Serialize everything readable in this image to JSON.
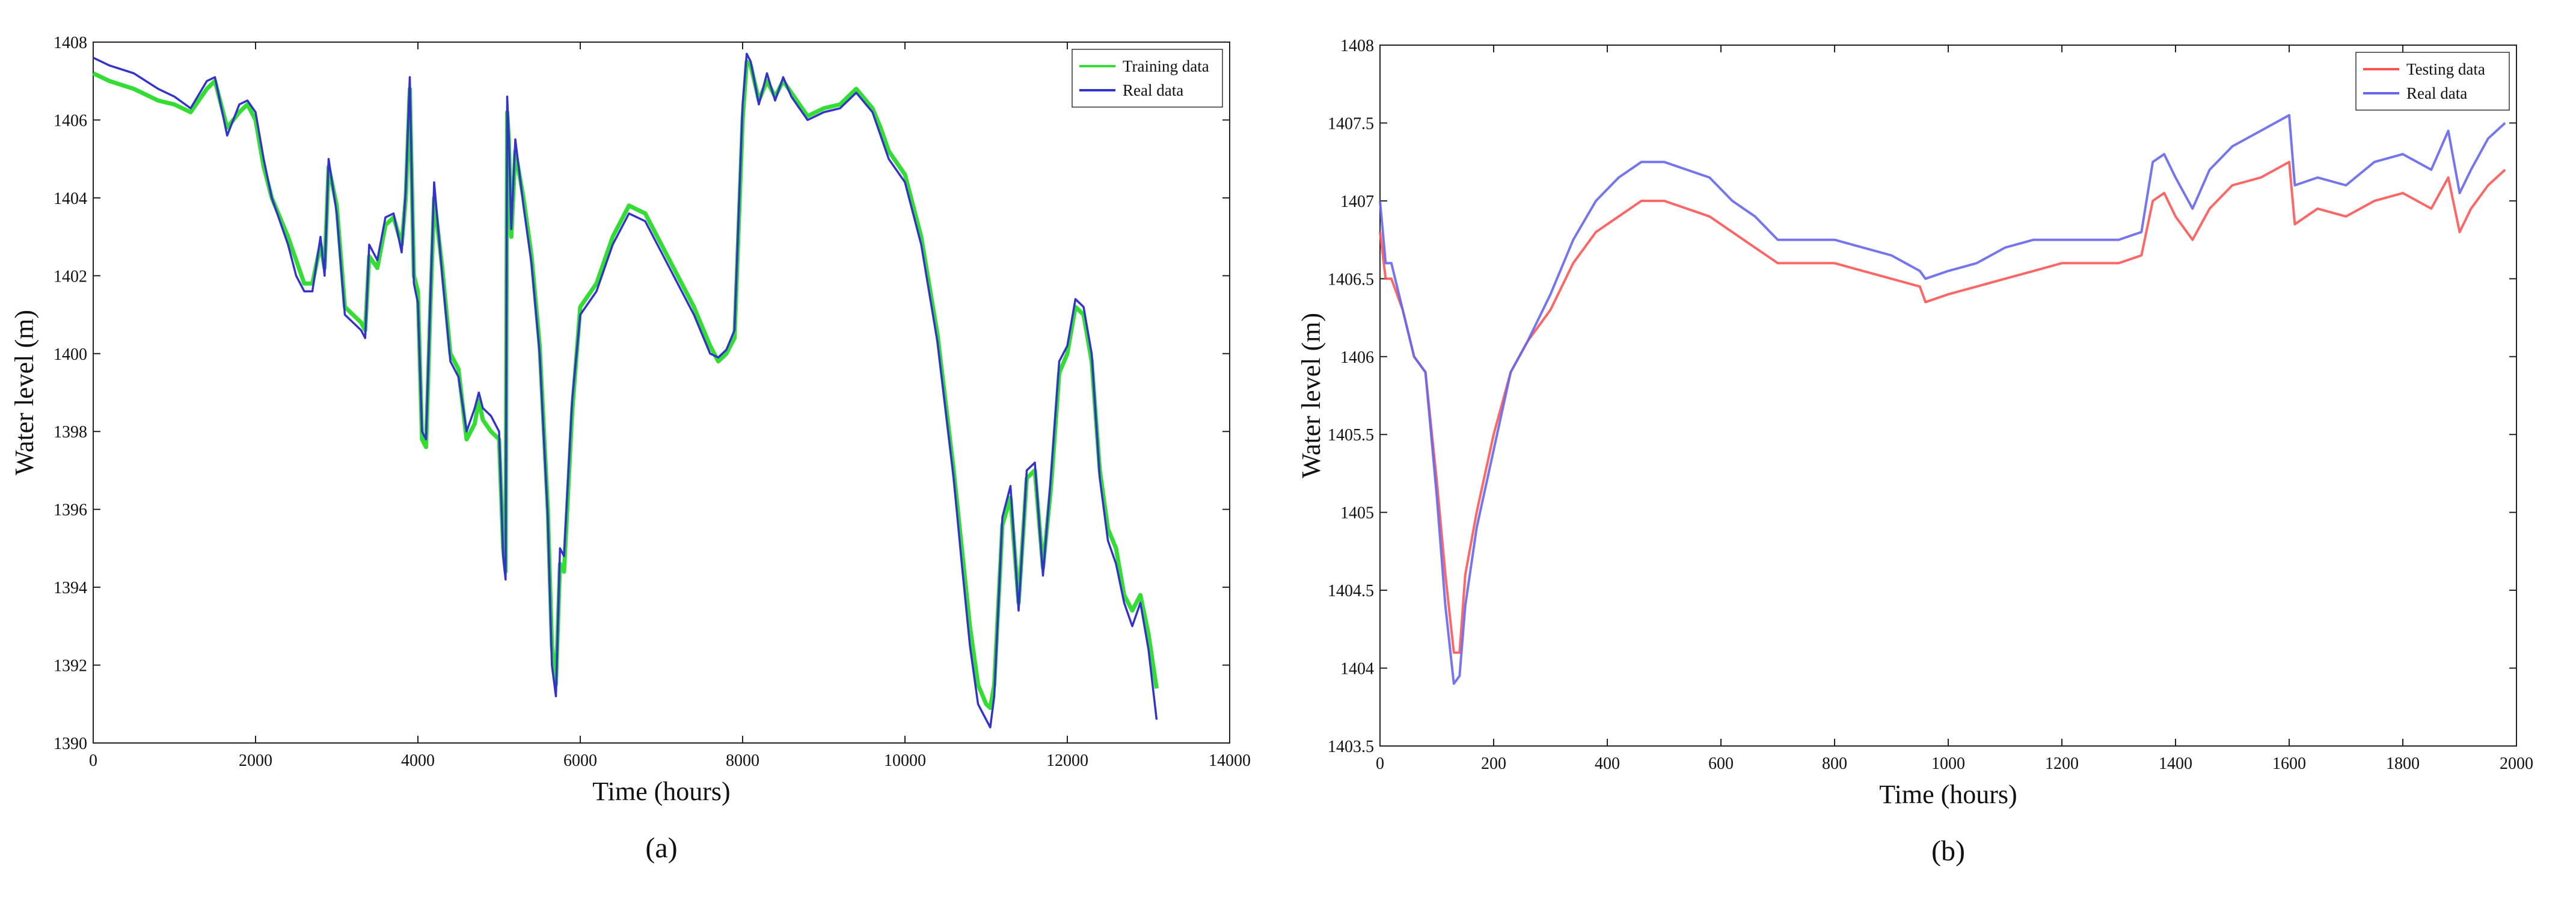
{
  "chart_data": [
    {
      "type": "line",
      "panel_label": "(a)",
      "xlabel": "Time (hours)",
      "ylabel": "Water level (m)",
      "xlim": [
        0,
        14000
      ],
      "ylim": [
        1390,
        1408
      ],
      "xticks": [
        0,
        2000,
        4000,
        6000,
        8000,
        10000,
        12000,
        14000
      ],
      "yticks": [
        1390,
        1392,
        1394,
        1396,
        1398,
        1400,
        1402,
        1404,
        1406,
        1408
      ],
      "grid": false,
      "legend_position": "top-right",
      "series": [
        {
          "name": "Training data",
          "color": "#33dd33",
          "x": [
            0,
            200,
            500,
            800,
            1000,
            1200,
            1400,
            1500,
            1650,
            1800,
            1900,
            2000,
            2100,
            2200,
            2400,
            2500,
            2600,
            2700,
            2800,
            2850,
            2900,
            3000,
            3100,
            3200,
            3300,
            3350,
            3400,
            3500,
            3600,
            3700,
            3800,
            3850,
            3900,
            3950,
            4000,
            4050,
            4100,
            4150,
            4200,
            4300,
            4400,
            4500,
            4600,
            4700,
            4750,
            4800,
            4900,
            5000,
            5050,
            5080,
            5100,
            5120,
            5150,
            5200,
            5300,
            5400,
            5500,
            5600,
            5650,
            5700,
            5750,
            5800,
            5900,
            6000,
            6200,
            6400,
            6600,
            6800,
            7000,
            7200,
            7400,
            7600,
            7700,
            7800,
            7900,
            8000,
            8050,
            8100,
            8200,
            8300,
            8400,
            8500,
            8600,
            8700,
            8800,
            8900,
            9000,
            9200,
            9400,
            9600,
            9700,
            9800,
            10000,
            10200,
            10400,
            10600,
            10700,
            10800,
            10900,
            11000,
            11050,
            11100,
            11200,
            11300,
            11400,
            11500,
            11600,
            11700,
            11800,
            11900,
            12000,
            12100,
            12200,
            12300,
            12400,
            12500,
            12600,
            12700,
            12800,
            12900,
            13000,
            13100
          ],
          "values": [
            1407.2,
            1407.0,
            1406.8,
            1406.5,
            1406.4,
            1406.2,
            1406.8,
            1407.0,
            1405.8,
            1406.2,
            1406.4,
            1406.0,
            1404.8,
            1404.0,
            1403.0,
            1402.4,
            1401.8,
            1401.8,
            1402.8,
            1402.2,
            1404.8,
            1403.8,
            1401.2,
            1401.0,
            1400.8,
            1400.6,
            1402.5,
            1402.2,
            1403.3,
            1403.5,
            1402.8,
            1404.0,
            1406.8,
            1402.0,
            1401.6,
            1397.8,
            1397.6,
            1401.0,
            1404.0,
            1402.2,
            1400.0,
            1399.6,
            1397.8,
            1398.2,
            1398.8,
            1398.3,
            1398.0,
            1397.8,
            1395.0,
            1394.4,
            1406.2,
            1405.5,
            1403.0,
            1405.2,
            1404.0,
            1402.5,
            1400.2,
            1396.0,
            1392.5,
            1391.5,
            1394.6,
            1394.4,
            1398.5,
            1401.2,
            1401.8,
            1403.0,
            1403.8,
            1403.6,
            1402.8,
            1402.0,
            1401.2,
            1400.2,
            1399.8,
            1400.0,
            1400.4,
            1406.0,
            1407.5,
            1407.4,
            1406.5,
            1407.0,
            1406.6,
            1407.0,
            1406.7,
            1406.4,
            1406.1,
            1406.2,
            1406.3,
            1406.4,
            1406.8,
            1406.3,
            1405.8,
            1405.2,
            1404.6,
            1403.0,
            1400.5,
            1397.0,
            1395.0,
            1393.0,
            1391.5,
            1391.0,
            1390.9,
            1391.5,
            1395.6,
            1396.3,
            1393.6,
            1396.8,
            1397.0,
            1394.5,
            1396.6,
            1399.5,
            1400.0,
            1401.2,
            1401.0,
            1399.8,
            1397.0,
            1395.5,
            1395.0,
            1393.8,
            1393.4,
            1393.8,
            1392.8,
            1391.4
          ]
        },
        {
          "name": "Real data",
          "color": "#3333cc",
          "x": [
            0,
            200,
            500,
            800,
            1000,
            1200,
            1400,
            1500,
            1650,
            1800,
            1900,
            2000,
            2100,
            2200,
            2400,
            2500,
            2600,
            2700,
            2800,
            2850,
            2900,
            3000,
            3100,
            3200,
            3300,
            3350,
            3400,
            3500,
            3600,
            3700,
            3800,
            3850,
            3900,
            3950,
            4000,
            4050,
            4100,
            4150,
            4200,
            4300,
            4400,
            4500,
            4600,
            4700,
            4750,
            4800,
            4900,
            5000,
            5050,
            5080,
            5100,
            5120,
            5150,
            5200,
            5300,
            5400,
            5500,
            5600,
            5650,
            5700,
            5750,
            5800,
            5900,
            6000,
            6200,
            6400,
            6600,
            6800,
            7000,
            7200,
            7400,
            7600,
            7700,
            7800,
            7900,
            8000,
            8050,
            8100,
            8200,
            8300,
            8400,
            8500,
            8600,
            8700,
            8800,
            8900,
            9000,
            9200,
            9400,
            9600,
            9700,
            9800,
            10000,
            10200,
            10400,
            10600,
            10700,
            10800,
            10900,
            11000,
            11050,
            11100,
            11200,
            11300,
            11400,
            11500,
            11600,
            11700,
            11800,
            11900,
            12000,
            12100,
            12200,
            12300,
            12400,
            12500,
            12600,
            12700,
            12800,
            12900,
            13000,
            13100
          ],
          "values": [
            1407.6,
            1407.4,
            1407.2,
            1406.8,
            1406.6,
            1406.3,
            1407.0,
            1407.1,
            1405.6,
            1406.4,
            1406.5,
            1406.2,
            1405.0,
            1404.0,
            1402.8,
            1402.0,
            1401.6,
            1401.6,
            1403.0,
            1402.0,
            1405.0,
            1403.6,
            1401.0,
            1400.8,
            1400.6,
            1400.4,
            1402.8,
            1402.4,
            1403.5,
            1403.6,
            1402.6,
            1404.2,
            1407.1,
            1401.8,
            1401.3,
            1398.0,
            1397.8,
            1401.2,
            1404.4,
            1402.0,
            1399.8,
            1399.4,
            1398.0,
            1398.6,
            1399.0,
            1398.6,
            1398.4,
            1398.0,
            1394.8,
            1394.2,
            1406.6,
            1405.6,
            1403.2,
            1405.5,
            1403.8,
            1402.3,
            1400.0,
            1395.8,
            1392.0,
            1391.2,
            1395.0,
            1394.8,
            1398.8,
            1401.0,
            1401.6,
            1402.8,
            1403.6,
            1403.4,
            1402.6,
            1401.8,
            1401.0,
            1400.0,
            1399.9,
            1400.1,
            1400.6,
            1406.4,
            1407.7,
            1407.5,
            1406.4,
            1407.2,
            1406.5,
            1407.1,
            1406.6,
            1406.3,
            1406.0,
            1406.1,
            1406.2,
            1406.3,
            1406.7,
            1406.2,
            1405.6,
            1405.0,
            1404.4,
            1402.8,
            1400.3,
            1396.8,
            1394.6,
            1392.5,
            1391.0,
            1390.6,
            1390.4,
            1391.2,
            1395.8,
            1396.6,
            1393.4,
            1397.0,
            1397.2,
            1394.3,
            1396.9,
            1399.8,
            1400.2,
            1401.4,
            1401.2,
            1400.0,
            1396.8,
            1395.2,
            1394.6,
            1393.6,
            1393.0,
            1393.6,
            1392.4,
            1390.6
          ]
        }
      ]
    },
    {
      "type": "line",
      "panel_label": "(b)",
      "xlabel": "Time (hours)",
      "ylabel": "Water level (m)",
      "xlim": [
        0,
        2000
      ],
      "ylim": [
        1403.5,
        1408
      ],
      "xticks": [
        0,
        200,
        400,
        600,
        800,
        1000,
        1200,
        1400,
        1600,
        1800,
        2000
      ],
      "yticks": [
        "1403.5",
        "1404",
        "1404.5",
        "1405",
        "1405.5",
        "1406",
        "1406.5",
        "1407",
        "1407.5",
        "1408"
      ],
      "grid": false,
      "legend_position": "top-right",
      "series": [
        {
          "name": "Testing data",
          "color": "#ff5555",
          "x": [
            0,
            10,
            20,
            40,
            60,
            80,
            100,
            115,
            130,
            140,
            150,
            170,
            200,
            230,
            260,
            300,
            340,
            380,
            420,
            460,
            500,
            540,
            580,
            620,
            660,
            700,
            750,
            800,
            850,
            900,
            950,
            960,
            1000,
            1050,
            1100,
            1150,
            1200,
            1250,
            1300,
            1340,
            1360,
            1380,
            1400,
            1430,
            1460,
            1500,
            1550,
            1600,
            1610,
            1650,
            1700,
            1750,
            1800,
            1850,
            1880,
            1900,
            1920,
            1950,
            1980
          ],
          "values": [
            1406.8,
            1406.5,
            1406.5,
            1406.3,
            1406.0,
            1405.9,
            1405.2,
            1404.6,
            1404.1,
            1404.1,
            1404.6,
            1405.0,
            1405.5,
            1405.9,
            1406.1,
            1406.3,
            1406.6,
            1406.8,
            1406.9,
            1407.0,
            1407.0,
            1406.95,
            1406.9,
            1406.8,
            1406.7,
            1406.6,
            1406.6,
            1406.6,
            1406.55,
            1406.5,
            1406.45,
            1406.35,
            1406.4,
            1406.45,
            1406.5,
            1406.55,
            1406.6,
            1406.6,
            1406.6,
            1406.65,
            1407.0,
            1407.05,
            1406.9,
            1406.75,
            1406.95,
            1407.1,
            1407.15,
            1407.25,
            1406.85,
            1406.95,
            1406.9,
            1407.0,
            1407.05,
            1406.95,
            1407.15,
            1406.8,
            1406.95,
            1407.1,
            1407.2
          ]
        },
        {
          "name": "Real data",
          "color": "#6666ee",
          "x": [
            0,
            10,
            20,
            40,
            60,
            80,
            100,
            115,
            130,
            140,
            150,
            170,
            200,
            230,
            260,
            300,
            340,
            380,
            420,
            460,
            500,
            540,
            580,
            620,
            660,
            700,
            750,
            800,
            850,
            900,
            950,
            960,
            1000,
            1050,
            1100,
            1150,
            1200,
            1250,
            1300,
            1340,
            1360,
            1380,
            1400,
            1430,
            1460,
            1500,
            1550,
            1600,
            1610,
            1650,
            1700,
            1750,
            1800,
            1850,
            1880,
            1900,
            1920,
            1950,
            1980
          ],
          "values": [
            1407.0,
            1406.6,
            1406.6,
            1406.3,
            1406.0,
            1405.9,
            1405.1,
            1404.4,
            1403.9,
            1403.95,
            1404.4,
            1404.9,
            1405.4,
            1405.9,
            1406.1,
            1406.4,
            1406.75,
            1407.0,
            1407.15,
            1407.25,
            1407.25,
            1407.2,
            1407.15,
            1407.0,
            1406.9,
            1406.75,
            1406.75,
            1406.75,
            1406.7,
            1406.65,
            1406.55,
            1406.5,
            1406.55,
            1406.6,
            1406.7,
            1406.75,
            1406.75,
            1406.75,
            1406.75,
            1406.8,
            1407.25,
            1407.3,
            1407.15,
            1406.95,
            1407.2,
            1407.35,
            1407.45,
            1407.55,
            1407.1,
            1407.15,
            1407.1,
            1407.25,
            1407.3,
            1407.2,
            1407.45,
            1407.05,
            1407.2,
            1407.4,
            1407.5
          ]
        }
      ]
    }
  ]
}
